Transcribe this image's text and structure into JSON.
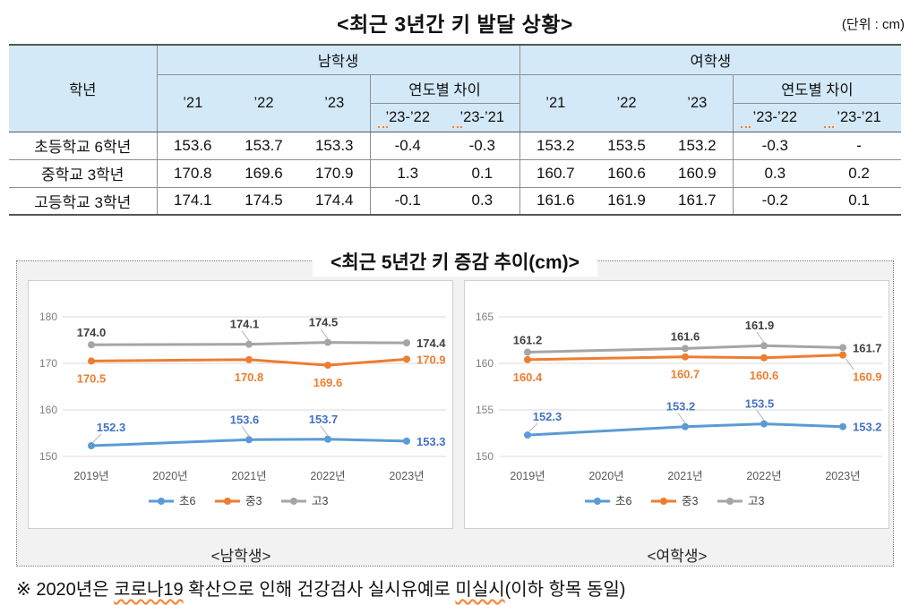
{
  "page": {
    "title": "<최근 3년간 키 발달 상황>",
    "unit_note": "(단위 : cm)"
  },
  "table": {
    "col_grade": "학년",
    "group_male": "남학생",
    "group_female": "여학생",
    "years": [
      "’21",
      "’22",
      "’23"
    ],
    "diff_label": "연도별 차이",
    "diff_cols": [
      "’23-’22",
      "’23-’21"
    ],
    "rows": [
      {
        "grade": "초등학교 6학년",
        "male": [
          "153.6",
          "153.7",
          "153.3",
          "-0.4",
          "-0.3"
        ],
        "female": [
          "153.2",
          "153.5",
          "153.2",
          "-0.3",
          "-"
        ]
      },
      {
        "grade": "중학교 3학년",
        "male": [
          "170.8",
          "169.6",
          "170.9",
          "1.3",
          "0.1"
        ],
        "female": [
          "160.7",
          "160.6",
          "160.9",
          "0.3",
          "0.2"
        ]
      },
      {
        "grade": "고등학교 3학년",
        "male": [
          "174.1",
          "174.5",
          "174.4",
          "-0.1",
          "0.3"
        ],
        "female": [
          "161.6",
          "161.9",
          "161.7",
          "-0.2",
          "0.1"
        ]
      }
    ]
  },
  "chart_section": {
    "title": "<최근 5년간 키 증감 추이(cm)>",
    "left_caption": "<남학생>",
    "right_caption": "<여학생>"
  },
  "chart_data": [
    {
      "type": "line",
      "title": "남학생",
      "x": [
        "2019년",
        "2020년",
        "2021년",
        "2022년",
        "2023년"
      ],
      "ylim": [
        150,
        180
      ],
      "yticks": [
        150,
        160,
        170,
        180
      ],
      "grid": true,
      "legend_position": "bottom",
      "note": "2020 value missing (COVID-19), line interpolated",
      "series": [
        {
          "name": "초6",
          "color": "#5B9BD5",
          "label_color": "#4472C4",
          "x_idx": [
            0,
            2,
            3,
            4
          ],
          "values": [
            152.3,
            153.6,
            153.7,
            153.3
          ],
          "label_pos": [
            "above-r-leader",
            "above-leader",
            "above-leader",
            "right"
          ]
        },
        {
          "name": "중3",
          "color": "#ED7D31",
          "label_color": "#ED7D31",
          "x_idx": [
            0,
            2,
            3,
            4
          ],
          "values": [
            170.5,
            170.8,
            169.6,
            170.9
          ],
          "label_pos": [
            "below",
            "below",
            "below",
            "right"
          ]
        },
        {
          "name": "고3",
          "color": "#A5A5A5",
          "label_color": "#404040",
          "x_idx": [
            0,
            2,
            3,
            4
          ],
          "values": [
            174.0,
            174.1,
            174.5,
            174.4
          ],
          "label_pos": [
            "above",
            "above-leader",
            "above-leader",
            "right"
          ]
        }
      ]
    },
    {
      "type": "line",
      "title": "여학생",
      "x": [
        "2019년",
        "2020년",
        "2021년",
        "2022년",
        "2023년"
      ],
      "ylim": [
        150,
        165
      ],
      "yticks": [
        150,
        155,
        160,
        165
      ],
      "grid": true,
      "legend_position": "bottom",
      "note": "2020 value missing (COVID-19), line interpolated",
      "series": [
        {
          "name": "초6",
          "color": "#5B9BD5",
          "label_color": "#4472C4",
          "x_idx": [
            0,
            2,
            3,
            4
          ],
          "values": [
            152.3,
            153.2,
            153.5,
            153.2
          ],
          "label_pos": [
            "above-r-leader",
            "above-leader",
            "above-leader",
            "right"
          ]
        },
        {
          "name": "중3",
          "color": "#ED7D31",
          "label_color": "#ED7D31",
          "x_idx": [
            0,
            2,
            3,
            4
          ],
          "values": [
            160.4,
            160.7,
            160.6,
            160.9
          ],
          "label_pos": [
            "below",
            "below",
            "below",
            "belowright-leader"
          ]
        },
        {
          "name": "고3",
          "color": "#A5A5A5",
          "label_color": "#404040",
          "x_idx": [
            0,
            2,
            3,
            4
          ],
          "values": [
            161.2,
            161.6,
            161.9,
            161.7
          ],
          "label_pos": [
            "above",
            "above",
            "above-leader",
            "right"
          ]
        }
      ]
    }
  ],
  "footnote": {
    "part1": "※ 2020년은 ",
    "underlined1": "코로나19",
    "part2": " 확산으로 인해 건강검사 실시유예로 ",
    "underlined2": "미실시",
    "part3": "(이하 항목 동일)"
  }
}
